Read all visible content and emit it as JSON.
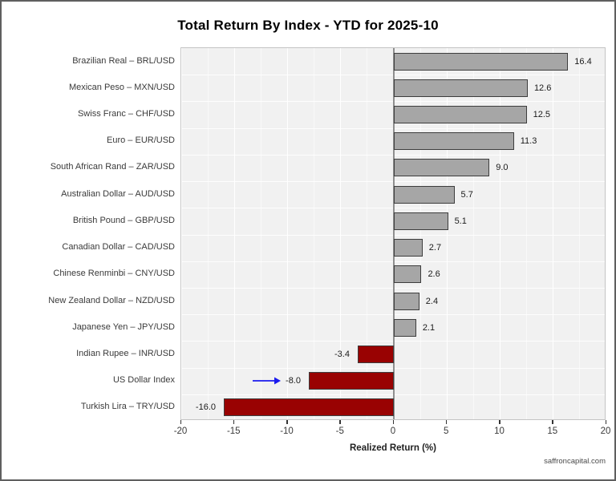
{
  "chart_data": {
    "type": "bar",
    "orientation": "horizontal",
    "title": "Total Return By Index - YTD for 2025-10",
    "xlabel": "Realized Return (%)",
    "xlim": [
      -20,
      20
    ],
    "xticks": [
      -20,
      -15,
      -10,
      -5,
      0,
      5,
      10,
      15,
      20
    ],
    "xtick_labels": [
      "-20",
      "-15",
      "-10",
      "-5",
      "0",
      "5",
      "10",
      "15",
      "20"
    ],
    "grid": true,
    "legend": "none",
    "categories": [
      "Brazilian Real – BRL/USD",
      "Mexican Peso – MXN/USD",
      "Swiss Franc – CHF/USD",
      "Euro – EUR/USD",
      "South African Rand – ZAR/USD",
      "Australian Dollar – AUD/USD",
      "British Pound – GBP/USD",
      "Canadian Dollar – CAD/USD",
      "Chinese Renminbi – CNY/USD",
      "New Zealand Dollar – NZD/USD",
      "Japanese Yen – JPY/USD",
      "Indian Rupee – INR/USD",
      "US Dollar Index",
      "Turkish Lira – TRY/USD"
    ],
    "values": [
      16.4,
      12.6,
      12.5,
      11.3,
      9.0,
      5.7,
      5.1,
      2.7,
      2.6,
      2.4,
      2.1,
      -3.4,
      -8.0,
      -16.0
    ],
    "value_labels": [
      "16.4",
      "12.6",
      "12.5",
      "11.3",
      "9.0",
      "5.7",
      "5.1",
      "2.7",
      "2.6",
      "2.4",
      "2.1",
      "-3.4",
      "-8.0",
      "-16.0"
    ],
    "colors": {
      "positive_bar": "#A6A6A6",
      "negative_bar": "#990202",
      "bar_border": "#3D3D3D",
      "panel_background": "#F1F1F1",
      "gridline": "#FFFFFF",
      "zero_line": "#8F8F8F",
      "annotation_arrow": "#1A1AEE"
    },
    "annotation": {
      "type": "arrow",
      "target_category": "US Dollar Index",
      "points_to_value_label": "-8.0"
    },
    "watermark": "saffroncapital.com"
  }
}
